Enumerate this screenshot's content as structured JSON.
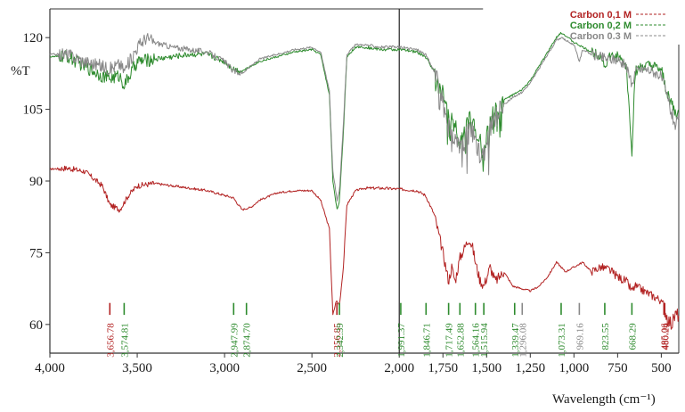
{
  "chart_data": {
    "type": "line",
    "title": "",
    "xlabel": "Wavelength (cm⁻¹)",
    "ylabel": "%T",
    "xlim": [
      4000,
      400
    ],
    "ylim": [
      54,
      126
    ],
    "x_ticks": [
      4000,
      3500,
      3000,
      2500,
      2000,
      1750,
      1500,
      1250,
      1000,
      750,
      500
    ],
    "x_tick_labels": [
      "4,000",
      "3,500",
      "3,000",
      "2,500",
      "2,000",
      "1,750",
      "1,500",
      "1,250",
      "1,000",
      "750",
      "500"
    ],
    "y_ticks": [
      60,
      75,
      90,
      105,
      120
    ],
    "y_tick_labels": [
      "60",
      "75",
      "90",
      "105",
      "120"
    ],
    "legend_position": "top-right",
    "vertical_marker_x": 2000,
    "series": [
      {
        "name": "Carbon 0,1 M",
        "color": "#b22222",
        "points": [
          [
            4000,
            92.5
          ],
          [
            3900,
            92.7
          ],
          [
            3800,
            92
          ],
          [
            3700,
            89
          ],
          [
            3656,
            85
          ],
          [
            3600,
            84
          ],
          [
            3550,
            87
          ],
          [
            3500,
            89
          ],
          [
            3400,
            89.5
          ],
          [
            3300,
            89
          ],
          [
            3200,
            88.5
          ],
          [
            3100,
            88
          ],
          [
            3000,
            87
          ],
          [
            2950,
            86.5
          ],
          [
            2900,
            84
          ],
          [
            2850,
            84.5
          ],
          [
            2800,
            86
          ],
          [
            2700,
            87.5
          ],
          [
            2600,
            88
          ],
          [
            2500,
            88
          ],
          [
            2450,
            86
          ],
          [
            2400,
            80
          ],
          [
            2380,
            62
          ],
          [
            2360,
            65
          ],
          [
            2342,
            64
          ],
          [
            2320,
            72
          ],
          [
            2300,
            85
          ],
          [
            2250,
            88
          ],
          [
            2200,
            88.5
          ],
          [
            2100,
            88.5
          ],
          [
            2000,
            88.3
          ],
          [
            1900,
            88
          ],
          [
            1850,
            87
          ],
          [
            1800,
            83
          ],
          [
            1750,
            75
          ],
          [
            1717,
            69
          ],
          [
            1700,
            72
          ],
          [
            1680,
            69
          ],
          [
            1652,
            74
          ],
          [
            1620,
            76.5
          ],
          [
            1600,
            78
          ],
          [
            1580,
            76
          ],
          [
            1564,
            73
          ],
          [
            1540,
            69.5
          ],
          [
            1516,
            68
          ],
          [
            1480,
            72
          ],
          [
            1450,
            69
          ],
          [
            1400,
            71
          ],
          [
            1350,
            68
          ],
          [
            1300,
            67.5
          ],
          [
            1250,
            67
          ],
          [
            1200,
            68
          ],
          [
            1150,
            70
          ],
          [
            1100,
            73
          ],
          [
            1073,
            72
          ],
          [
            1050,
            71
          ],
          [
            1000,
            72
          ],
          [
            950,
            73
          ],
          [
            900,
            71
          ],
          [
            850,
            72
          ],
          [
            800,
            71.5
          ],
          [
            750,
            70
          ],
          [
            700,
            69
          ],
          [
            668,
            67
          ],
          [
            650,
            68
          ],
          [
            600,
            67
          ],
          [
            550,
            66
          ],
          [
            500,
            65
          ],
          [
            480,
            63
          ],
          [
            460,
            61
          ],
          [
            440,
            60
          ],
          [
            420,
            62
          ]
        ]
      },
      {
        "name": "Carbon 0,2 M",
        "color": "#2e8b2e",
        "points": [
          [
            4000,
            116
          ],
          [
            3900,
            116
          ],
          [
            3800,
            114
          ],
          [
            3700,
            112
          ],
          [
            3656,
            111.5
          ],
          [
            3600,
            112
          ],
          [
            3574,
            110
          ],
          [
            3500,
            115
          ],
          [
            3400,
            115.5
          ],
          [
            3300,
            116
          ],
          [
            3200,
            116.5
          ],
          [
            3100,
            116.5
          ],
          [
            3000,
            115
          ],
          [
            2950,
            113.5
          ],
          [
            2900,
            113
          ],
          [
            2850,
            114
          ],
          [
            2800,
            115
          ],
          [
            2700,
            116
          ],
          [
            2600,
            117
          ],
          [
            2500,
            117.5
          ],
          [
            2450,
            116.5
          ],
          [
            2400,
            108
          ],
          [
            2380,
            90
          ],
          [
            2356,
            84
          ],
          [
            2342,
            86
          ],
          [
            2320,
            100
          ],
          [
            2300,
            116
          ],
          [
            2250,
            118
          ],
          [
            2200,
            118
          ],
          [
            2100,
            117.5
          ],
          [
            2000,
            117.5
          ],
          [
            1900,
            117
          ],
          [
            1850,
            116
          ],
          [
            1800,
            113
          ],
          [
            1750,
            108
          ],
          [
            1717,
            104
          ],
          [
            1700,
            103
          ],
          [
            1652,
            99
          ],
          [
            1600,
            103
          ],
          [
            1564,
            101
          ],
          [
            1540,
            98
          ],
          [
            1516,
            96
          ],
          [
            1480,
            103
          ],
          [
            1450,
            104
          ],
          [
            1400,
            107
          ],
          [
            1350,
            108
          ],
          [
            1300,
            109
          ],
          [
            1250,
            111
          ],
          [
            1200,
            114
          ],
          [
            1150,
            117
          ],
          [
            1100,
            120
          ],
          [
            1073,
            121
          ],
          [
            1050,
            120.5
          ],
          [
            1000,
            119
          ],
          [
            950,
            118
          ],
          [
            900,
            117
          ],
          [
            850,
            116.5
          ],
          [
            823,
            114
          ],
          [
            800,
            116
          ],
          [
            750,
            116
          ],
          [
            700,
            114
          ],
          [
            668,
            96
          ],
          [
            650,
            113
          ],
          [
            600,
            114
          ],
          [
            550,
            114
          ],
          [
            500,
            113
          ],
          [
            480,
            110
          ],
          [
            460,
            108
          ],
          [
            440,
            106
          ],
          [
            420,
            104
          ]
        ]
      },
      {
        "name": "Carbon 0.3 M",
        "color": "#888888",
        "points": [
          [
            4000,
            116.5
          ],
          [
            3900,
            116.5
          ],
          [
            3800,
            115
          ],
          [
            3700,
            114
          ],
          [
            3656,
            113.5
          ],
          [
            3600,
            114.5
          ],
          [
            3574,
            113
          ],
          [
            3500,
            118
          ],
          [
            3450,
            120
          ],
          [
            3400,
            119
          ],
          [
            3300,
            118
          ],
          [
            3200,
            117.5
          ],
          [
            3100,
            117
          ],
          [
            3000,
            115
          ],
          [
            2950,
            113
          ],
          [
            2900,
            112.5
          ],
          [
            2850,
            114
          ],
          [
            2800,
            115.5
          ],
          [
            2700,
            116.5
          ],
          [
            2600,
            117.5
          ],
          [
            2500,
            118
          ],
          [
            2450,
            117
          ],
          [
            2400,
            109
          ],
          [
            2380,
            92
          ],
          [
            2356,
            86
          ],
          [
            2342,
            88
          ],
          [
            2320,
            102
          ],
          [
            2300,
            116.5
          ],
          [
            2250,
            118.5
          ],
          [
            2200,
            118.5
          ],
          [
            2100,
            118
          ],
          [
            2000,
            118
          ],
          [
            1900,
            117.5
          ],
          [
            1850,
            116.5
          ],
          [
            1800,
            113
          ],
          [
            1750,
            106
          ],
          [
            1717,
            101
          ],
          [
            1700,
            99
          ],
          [
            1652,
            97
          ],
          [
            1600,
            101
          ],
          [
            1564,
            99
          ],
          [
            1540,
            96
          ],
          [
            1516,
            95
          ],
          [
            1480,
            101
          ],
          [
            1450,
            103
          ],
          [
            1400,
            106
          ],
          [
            1350,
            107.5
          ],
          [
            1300,
            108.5
          ],
          [
            1250,
            110.5
          ],
          [
            1200,
            113.5
          ],
          [
            1150,
            116.5
          ],
          [
            1100,
            119.5
          ],
          [
            1073,
            120
          ],
          [
            1050,
            119.5
          ],
          [
            1000,
            118.5
          ],
          [
            969,
            115
          ],
          [
            950,
            117.5
          ],
          [
            900,
            116.5
          ],
          [
            850,
            116
          ],
          [
            800,
            115.5
          ],
          [
            750,
            115.5
          ],
          [
            700,
            114
          ],
          [
            668,
            110
          ],
          [
            650,
            113
          ],
          [
            600,
            113.5
          ],
          [
            550,
            113
          ],
          [
            500,
            112
          ],
          [
            480,
            109
          ],
          [
            460,
            107
          ],
          [
            440,
            104
          ],
          [
            420,
            102
          ]
        ]
      }
    ],
    "peak_labels": [
      {
        "x": 3656.78,
        "label": "3,656.78",
        "color": "#b22222"
      },
      {
        "x": 3574.81,
        "label": "3,574.81",
        "color": "#2e8b2e"
      },
      {
        "x": 2947.99,
        "label": "2,947.99",
        "color": "#2e8b2e"
      },
      {
        "x": 2874.7,
        "label": "2,874.70",
        "color": "#2e8b2e"
      },
      {
        "x": 2356.85,
        "label": "2,356.85",
        "color": "#b22222"
      },
      {
        "x": 2342.39,
        "label": "2,342.39",
        "color": "#2e8b2e"
      },
      {
        "x": 1991.37,
        "label": "1,991.37",
        "color": "#2e8b2e"
      },
      {
        "x": 1846.71,
        "label": "1,846.71",
        "color": "#2e8b2e"
      },
      {
        "x": 1717.49,
        "label": "1,717.49",
        "color": "#2e8b2e"
      },
      {
        "x": 1652.88,
        "label": "1,652.88",
        "color": "#2e8b2e"
      },
      {
        "x": 1564.16,
        "label": "1,564.16",
        "color": "#2e8b2e"
      },
      {
        "x": 1515.94,
        "label": "1,515.94",
        "color": "#2e8b2e"
      },
      {
        "x": 1339.47,
        "label": "1,339.47",
        "color": "#2e8b2e"
      },
      {
        "x": 1296.08,
        "label": "1,296.08",
        "color": "#888888"
      },
      {
        "x": 1073.31,
        "label": "1,073.31",
        "color": "#2e8b2e"
      },
      {
        "x": 969.16,
        "label": "969.16",
        "color": "#888888"
      },
      {
        "x": 823.55,
        "label": "823.55",
        "color": "#2e8b2e"
      },
      {
        "x": 668.29,
        "label": "668.29",
        "color": "#2e8b2e"
      },
      {
        "x": 485.06,
        "label": "485.06",
        "color": "#b22222"
      },
      {
        "x": 480.24,
        "label": "480.24",
        "color": "#b22222"
      }
    ]
  }
}
